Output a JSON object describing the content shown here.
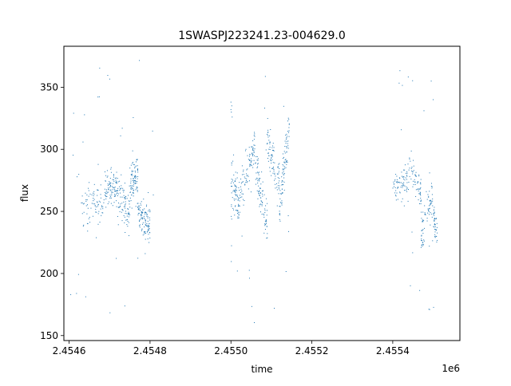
{
  "chart_data": {
    "type": "scatter",
    "title": "1SWASPJ223241.23-004629.0",
    "xlabel": "time",
    "ylabel": "flux",
    "x_offset_label": "1e6",
    "xlim": [
      2454587,
      2455566
    ],
    "ylim": [
      146,
      383
    ],
    "x_ticks": [
      2454600,
      2454800,
      2455000,
      2455200,
      2455400
    ],
    "x_tick_labels": [
      "2.4546",
      "2.4548",
      "2.4550",
      "2.4552",
      "2.4554"
    ],
    "y_ticks": [
      150,
      200,
      250,
      300,
      350
    ],
    "y_tick_labels": [
      "150",
      "200",
      "250",
      "300",
      "350"
    ],
    "grid": false,
    "marker_color": "#1f77b4",
    "marker": "point, tiny",
    "series": [
      {
        "segments": [
          {
            "x": [
              2454630,
              2454690
            ],
            "y_center": [
              250,
              263
            ],
            "y_scatter": 12,
            "density": 80
          },
          {
            "x": [
              2454690,
              2454720
            ],
            "y_center": [
              268,
              270
            ],
            "y_scatter": 10,
            "density": 90
          },
          {
            "x": [
              2454720,
              2454750
            ],
            "y_center": [
              262,
              250
            ],
            "y_scatter": 14,
            "density": 80
          },
          {
            "x": [
              2454750,
              2454770
            ],
            "y_center": [
              268,
              282
            ],
            "y_scatter": 14,
            "density": 90
          },
          {
            "x": [
              2454770,
              2454800
            ],
            "y_center": [
              250,
              238
            ],
            "y_scatter": 10,
            "density": 110
          },
          {
            "x": [
              2455000,
              2455020
            ],
            "y_center": [
              270,
              255
            ],
            "y_scatter": 14,
            "density": 70
          },
          {
            "x": [
              2455020,
              2455060
            ],
            "y_center": [
              260,
              305
            ],
            "y_scatter": 12,
            "density": 90
          },
          {
            "x": [
              2455060,
              2455090
            ],
            "y_center": [
              285,
              240
            ],
            "y_scatter": 12,
            "density": 90
          },
          {
            "x": [
              2455090,
              2455120
            ],
            "y_center": [
              305,
              275
            ],
            "y_scatter": 12,
            "density": 80
          },
          {
            "x": [
              2455120,
              2455145
            ],
            "y_center": [
              255,
              320
            ],
            "y_scatter": 12,
            "density": 90
          },
          {
            "x": [
              2455400,
              2455440
            ],
            "y_center": [
              268,
              278
            ],
            "y_scatter": 10,
            "density": 70
          },
          {
            "x": [
              2455440,
              2455470
            ],
            "y_center": [
              290,
              265
            ],
            "y_scatter": 10,
            "density": 60
          },
          {
            "x": [
              2455470,
              2455500
            ],
            "y_center": [
              230,
              265
            ],
            "y_scatter": 12,
            "density": 70
          },
          {
            "x": [
              2455500,
              2455510
            ],
            "y_center": [
              250,
              230
            ],
            "y_scatter": 10,
            "density": 40
          }
        ],
        "outlier_clusters": [
          {
            "x": [
              2454600,
              2454810
            ],
            "y": [
              160,
              375
            ],
            "count": 35
          },
          {
            "x": [
              2455000,
              2455150
            ],
            "y": [
              157,
              360
            ],
            "count": 30
          },
          {
            "x": [
              2455400,
              2455510
            ],
            "y": [
              158,
              368
            ],
            "count": 28
          }
        ],
        "points": [
          {
            "x": 2455000,
            "y": 338
          },
          {
            "x": 2455002,
            "y": 335
          },
          {
            "x": 2455001,
            "y": 330
          },
          {
            "x": 2455003,
            "y": 326
          },
          {
            "x": 2455000,
            "y": 332
          }
        ]
      }
    ]
  }
}
